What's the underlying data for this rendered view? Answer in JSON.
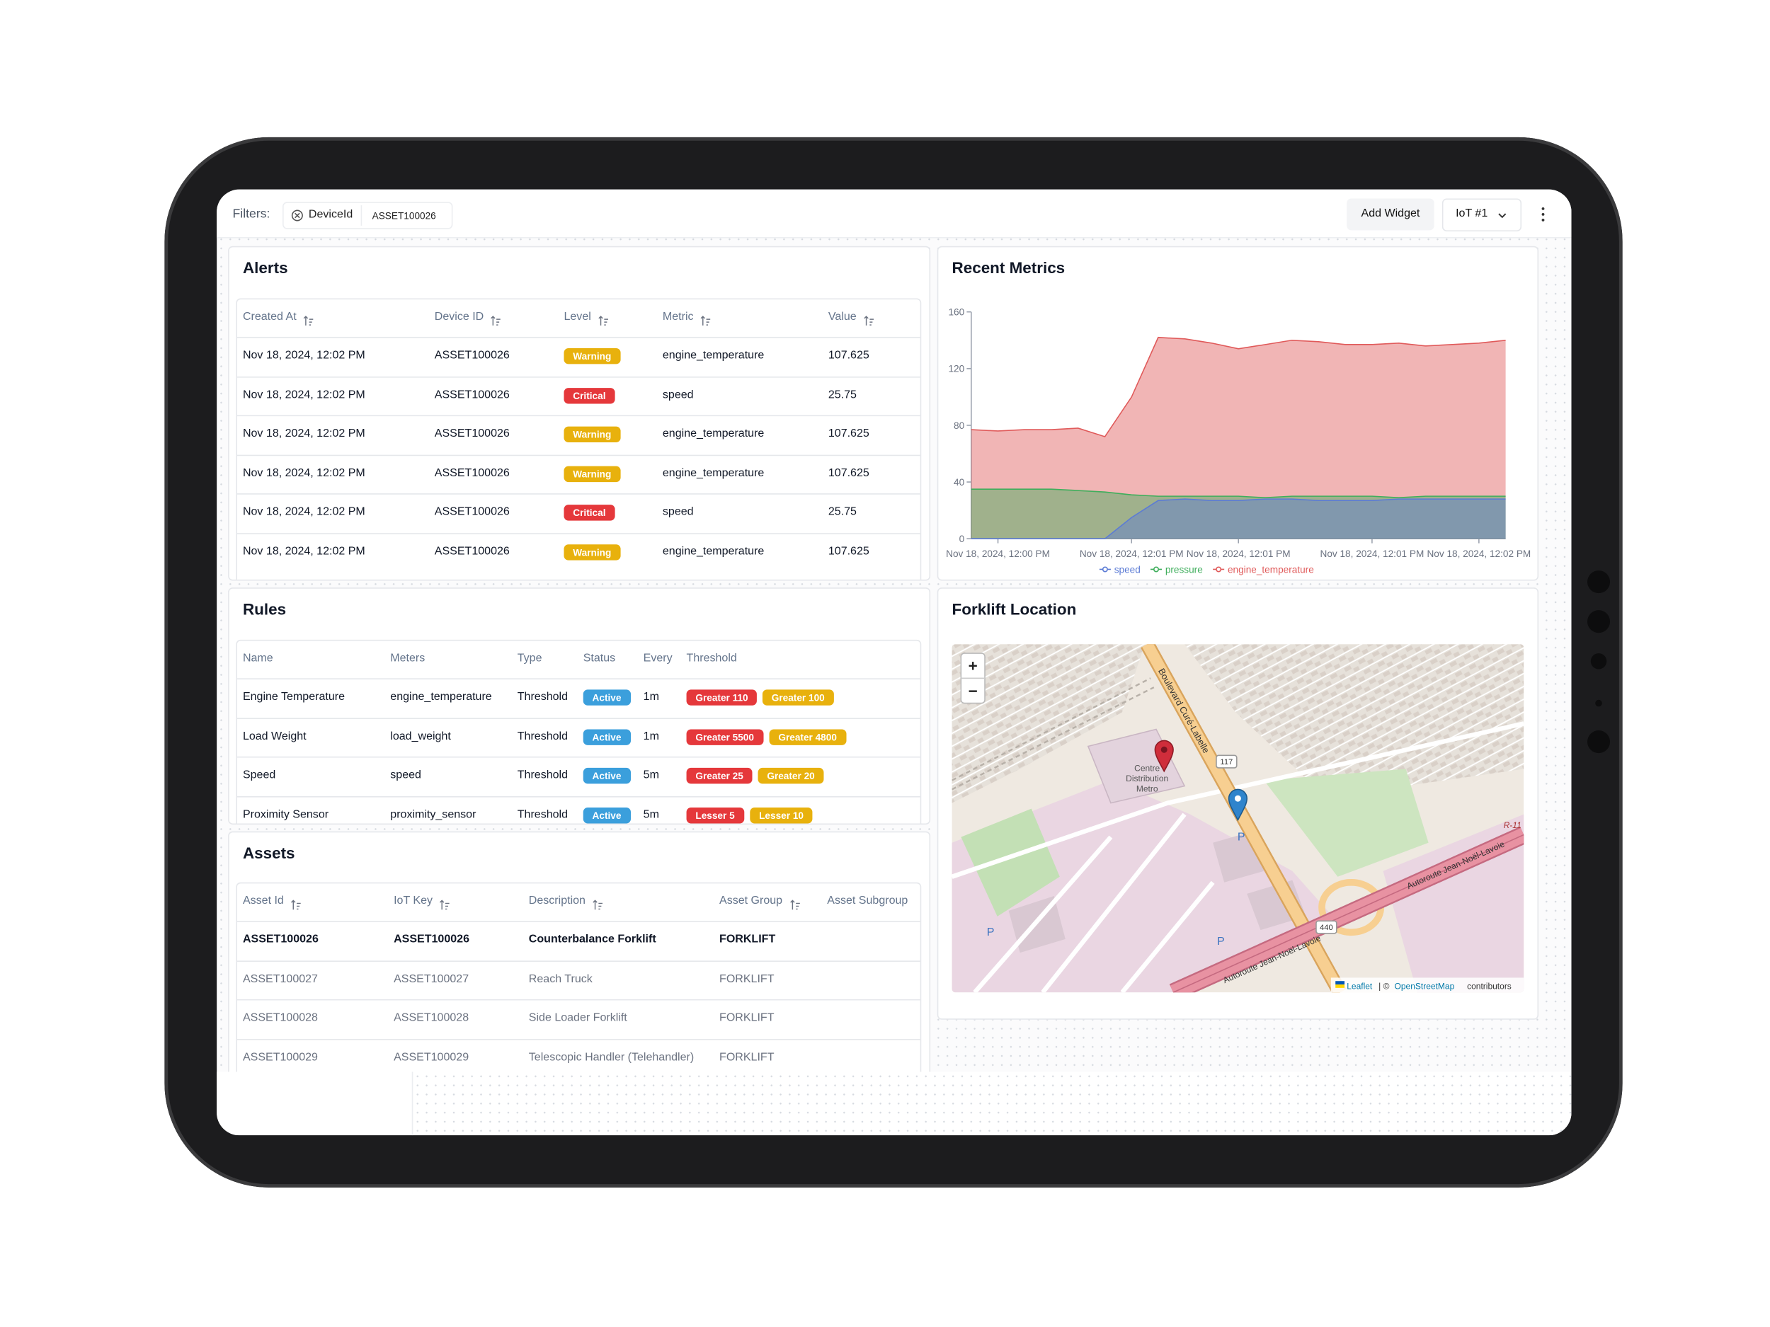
{
  "filters": {
    "label": "Filters:",
    "chip_key": "DeviceId",
    "chip_value": "ASSET100026"
  },
  "toolbar": {
    "add_widget": "Add Widget",
    "dashboard": "IoT #1"
  },
  "alerts": {
    "title": "Alerts",
    "columns": [
      "Created At",
      "Device ID",
      "Level",
      "Metric",
      "Value"
    ],
    "level_colors": {
      "Warning": "#e8b10d",
      "Critical": "#e5383b"
    },
    "rows": [
      [
        "Nov 18, 2024, 12:02 PM",
        "ASSET100026",
        "Warning",
        "engine_temperature",
        "107.625"
      ],
      [
        "Nov 18, 2024, 12:02 PM",
        "ASSET100026",
        "Critical",
        "speed",
        "25.75"
      ],
      [
        "Nov 18, 2024, 12:02 PM",
        "ASSET100026",
        "Warning",
        "engine_temperature",
        "107.625"
      ],
      [
        "Nov 18, 2024, 12:02 PM",
        "ASSET100026",
        "Warning",
        "engine_temperature",
        "107.625"
      ],
      [
        "Nov 18, 2024, 12:02 PM",
        "ASSET100026",
        "Critical",
        "speed",
        "25.75"
      ],
      [
        "Nov 18, 2024, 12:02 PM",
        "ASSET100026",
        "Warning",
        "engine_temperature",
        "107.625"
      ]
    ]
  },
  "chart_data": {
    "type": "area",
    "title": "Recent Metrics",
    "categories": [
      null,
      "Nov 18, 2024, 12:00 PM",
      null,
      null,
      null,
      null,
      "Nov 18, 2024, 12:01 PM",
      null,
      null,
      null,
      "Nov 18, 2024, 12:01 PM",
      null,
      null,
      null,
      null,
      "Nov 18, 2024, 12:01 PM",
      null,
      null,
      null,
      "Nov 18, 2024, 12:02 PM",
      null
    ],
    "series": [
      {
        "name": "speed",
        "color": "#5b7bd5",
        "values": [
          0,
          0,
          0,
          0,
          0,
          0,
          15,
          27,
          28,
          27,
          27,
          28,
          28,
          27,
          27,
          27,
          28,
          28,
          28,
          28,
          28
        ]
      },
      {
        "name": "pressure",
        "color": "#3fae5c",
        "values": [
          35,
          35,
          35,
          35,
          34,
          33,
          31,
          30,
          30,
          30,
          30,
          29,
          30,
          30,
          30,
          30,
          29,
          30,
          30,
          30,
          30
        ]
      },
      {
        "name": "engine_temperature",
        "color": "#e05a5a",
        "values": [
          77,
          76,
          77,
          77,
          78,
          72,
          100,
          142,
          141,
          138,
          134,
          137,
          140,
          139,
          137,
          137,
          138,
          136,
          137,
          138,
          140
        ]
      }
    ],
    "ylim": [
      0,
      160
    ],
    "yticks": [
      0,
      40,
      80,
      120,
      160
    ],
    "grid": false
  },
  "rules": {
    "title": "Rules",
    "columns": [
      "Name",
      "Meters",
      "Type",
      "Status",
      "Every",
      "Threshold"
    ],
    "status_color": "#3b9fdc",
    "threshold_colors": [
      "#e5383b",
      "#e8b10d"
    ],
    "rows": [
      [
        "Engine Temperature",
        "engine_temperature",
        "Threshold",
        "Active",
        "1m",
        [
          "Greater 110",
          "Greater 100"
        ]
      ],
      [
        "Load Weight",
        "load_weight",
        "Threshold",
        "Active",
        "1m",
        [
          "Greater 5500",
          "Greater 4800"
        ]
      ],
      [
        "Speed",
        "speed",
        "Threshold",
        "Active",
        "5m",
        [
          "Greater 25",
          "Greater 20"
        ]
      ],
      [
        "Proximity Sensor",
        "proximity_sensor",
        "Threshold",
        "Active",
        "5m",
        [
          "Lesser 5",
          "Lesser 10"
        ]
      ]
    ]
  },
  "assets": {
    "title": "Assets",
    "columns": [
      "Asset Id",
      "IoT Key",
      "Description",
      "Asset Group",
      "Asset Subgroup"
    ],
    "rows": [
      [
        "ASSET100026",
        "ASSET100026",
        "Counterbalance Forklift",
        "FORKLIFT"
      ],
      [
        "ASSET100027",
        "ASSET100027",
        "Reach Truck",
        "FORKLIFT"
      ],
      [
        "ASSET100028",
        "ASSET100028",
        "Side Loader Forklift",
        "FORKLIFT"
      ],
      [
        "ASSET100029",
        "ASSET100029",
        "Telescopic Handler (Telehandler)",
        "FORKLIFT"
      ]
    ]
  },
  "map": {
    "title": "Forklift Location",
    "zoom_in": "+",
    "zoom_out": "−",
    "labels": [
      "Boulevard Curé-Labelle",
      "Centre",
      "Distribution",
      "Metro",
      "117",
      "440",
      "Autoroute Jean-Noël-Lavoie",
      "Autoroute Jean-Noël-Lavoie",
      "R-11",
      "P",
      "P",
      "P"
    ],
    "attribution": {
      "leaflet": "Leaflet",
      "separator": "| ©",
      "osm": "OpenStreetMap",
      "suffix": "contributors"
    }
  }
}
